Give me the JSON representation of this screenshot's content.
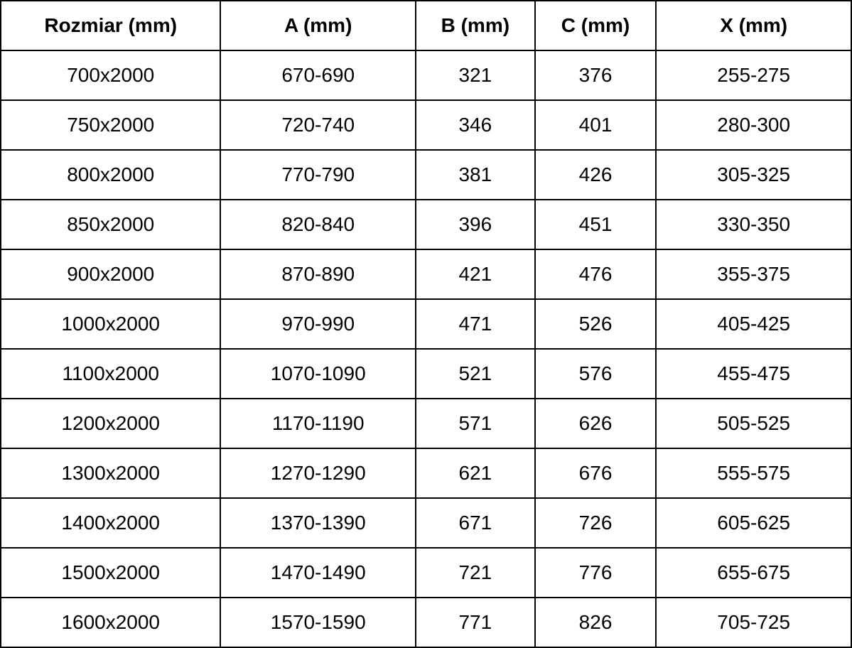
{
  "table": {
    "headers": [
      "Rozmiar (mm)",
      "A (mm)",
      "B (mm)",
      "C (mm)",
      "X (mm)"
    ],
    "rows": [
      [
        "700x2000",
        "670-690",
        "321",
        "376",
        "255-275"
      ],
      [
        "750x2000",
        "720-740",
        "346",
        "401",
        "280-300"
      ],
      [
        "800x2000",
        "770-790",
        "381",
        "426",
        "305-325"
      ],
      [
        "850x2000",
        "820-840",
        "396",
        "451",
        "330-350"
      ],
      [
        "900x2000",
        "870-890",
        "421",
        "476",
        "355-375"
      ],
      [
        "1000x2000",
        "970-990",
        "471",
        "526",
        "405-425"
      ],
      [
        "1100x2000",
        "1070-1090",
        "521",
        "576",
        "455-475"
      ],
      [
        "1200x2000",
        "1170-1190",
        "571",
        "626",
        "505-525"
      ],
      [
        "1300x2000",
        "1270-1290",
        "621",
        "676",
        "555-575"
      ],
      [
        "1400x2000",
        "1370-1390",
        "671",
        "726",
        "605-625"
      ],
      [
        "1500x2000",
        "1470-1490",
        "721",
        "776",
        "655-675"
      ],
      [
        "1600x2000",
        "1570-1590",
        "771",
        "826",
        "705-725"
      ]
    ]
  },
  "chart_data": {
    "type": "table",
    "title": "",
    "columns": [
      "Rozmiar (mm)",
      "A (mm)",
      "B (mm)",
      "C (mm)",
      "X (mm)"
    ],
    "rows": [
      [
        "700x2000",
        "670-690",
        321,
        376,
        "255-275"
      ],
      [
        "750x2000",
        "720-740",
        346,
        401,
        "280-300"
      ],
      [
        "800x2000",
        "770-790",
        381,
        426,
        "305-325"
      ],
      [
        "850x2000",
        "820-840",
        396,
        451,
        "330-350"
      ],
      [
        "900x2000",
        "870-890",
        421,
        476,
        "355-375"
      ],
      [
        "1000x2000",
        "970-990",
        471,
        526,
        "405-425"
      ],
      [
        "1100x2000",
        "1070-1090",
        521,
        576,
        "455-475"
      ],
      [
        "1200x2000",
        "1170-1190",
        571,
        626,
        "505-525"
      ],
      [
        "1300x2000",
        "1270-1290",
        621,
        676,
        "555-575"
      ],
      [
        "1400x2000",
        "1370-1390",
        671,
        726,
        "605-625"
      ],
      [
        "1500x2000",
        "1470-1490",
        721,
        776,
        "655-675"
      ],
      [
        "1600x2000",
        "1570-1590",
        771,
        826,
        "705-725"
      ]
    ],
    "layout_hints": {
      "grid": true,
      "header_bold": true,
      "text_align": "center",
      "border_color": "#000000",
      "background": "#ffffff"
    }
  },
  "colors": {
    "border": "#000000",
    "text": "#000000",
    "background": "#ffffff"
  }
}
